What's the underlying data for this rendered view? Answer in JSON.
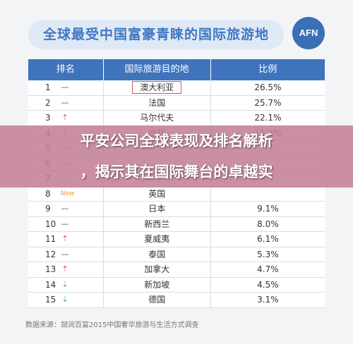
{
  "title": "全球最受中国富豪青睐的国际旅游地",
  "logo_text": "AFN",
  "headers": {
    "rank": "排名",
    "destination": "国际旅游目的地",
    "ratio": "比例"
  },
  "rows": [
    {
      "rank": "1",
      "indicator": "flat",
      "destination": "澳大利亚",
      "ratio": "26.5%",
      "highlight": true
    },
    {
      "rank": "2",
      "indicator": "flat",
      "destination": "法国",
      "ratio": "25.7%"
    },
    {
      "rank": "3",
      "indicator": "up",
      "destination": "马尔代夫",
      "ratio": "22.1%"
    },
    {
      "rank": "4",
      "indicator": "down",
      "destination": "迪拜",
      "ratio": "15.2%"
    },
    {
      "rank": "5",
      "indicator": "flat",
      "destination": "",
      "ratio": ""
    },
    {
      "rank": "6",
      "indicator": "flat",
      "destination": "",
      "ratio": ""
    },
    {
      "rank": "7",
      "indicator": "flat",
      "destination": "",
      "ratio": ""
    },
    {
      "rank": "8",
      "indicator": "new",
      "destination": "英国",
      "ratio": "",
      "new_label": "New"
    },
    {
      "rank": "9",
      "indicator": "flat",
      "destination": "日本",
      "ratio": "9.1%"
    },
    {
      "rank": "10",
      "indicator": "flat",
      "destination": "新西兰",
      "ratio": "8.0%"
    },
    {
      "rank": "11",
      "indicator": "up",
      "destination": "夏威夷",
      "ratio": "6.1%"
    },
    {
      "rank": "12",
      "indicator": "flat",
      "destination": "泰国",
      "ratio": "5.3%"
    },
    {
      "rank": "13",
      "indicator": "up",
      "destination": "加拿大",
      "ratio": "4.7%"
    },
    {
      "rank": "14",
      "indicator": "down",
      "destination": "新加坡",
      "ratio": "4.5%"
    },
    {
      "rank": "15",
      "indicator": "down",
      "destination": "德国",
      "ratio": "3.1%"
    }
  ],
  "source": "数据来源：胡润百富2015中国奢华旅游与生活方式调查",
  "banner": {
    "line1": "平安公司全球表现及排名解析",
    "line2": "，揭示其在国际舞台的卓越实"
  },
  "colors": {
    "accent": "#3f74bd",
    "highlight": "#d9534f",
    "banner": "#c48096"
  }
}
